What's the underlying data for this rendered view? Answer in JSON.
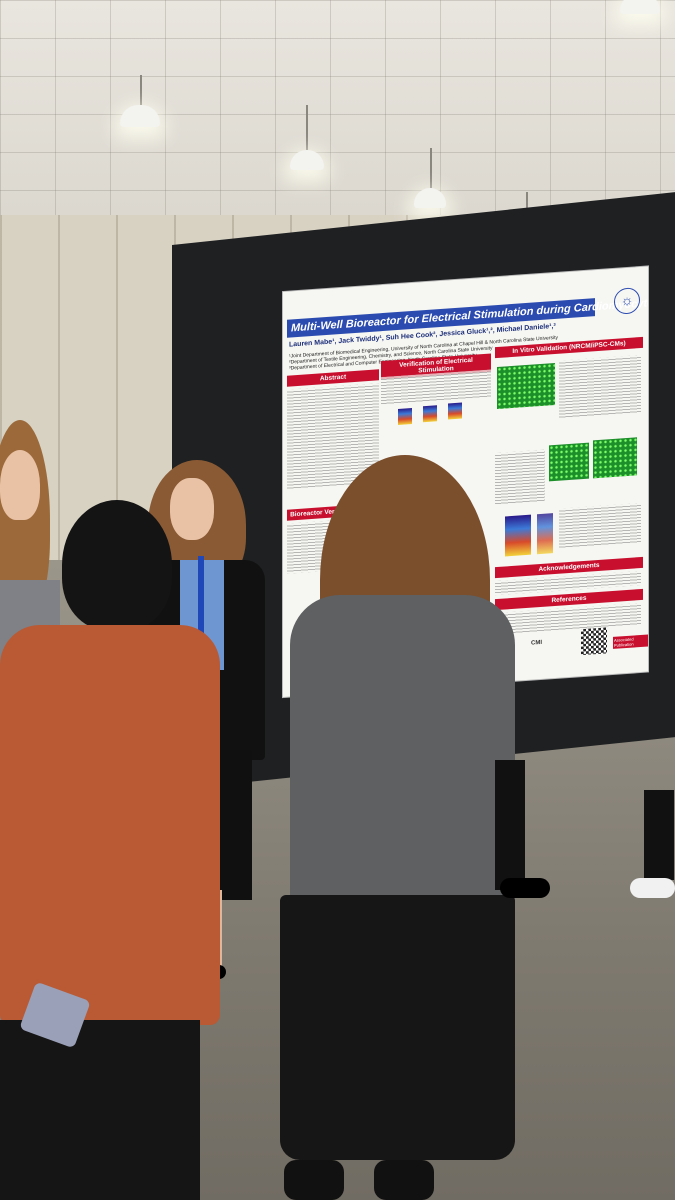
{
  "poster": {
    "title": "Multi-Well Bioreactor for Electrical Stimulation during Cardiomyocyte Differentiation",
    "authors": "Lauren Mabe¹, Jack Twiddy¹, Suh Hee Cook², Jessica Gluck¹,², Michael Daniele¹,³",
    "affiliations": [
      "¹Joint Department of Biomedical Engineering, University of North Carolina at Chapel Hill & North Carolina State University",
      "²Department of Textile Engineering, Chemistry, and Science, North Carolina State University",
      "³Department of Electrical and Computer Engineering, North Carolina State University"
    ],
    "sections": {
      "abstract": "Abstract",
      "verification": "Verification of Electrical Stimulation",
      "in_vitro": "In Vitro Validation (NRCM/iPSC-CMs)",
      "bioreactor": "Bioreactor Versi",
      "acknowledgements": "Acknowledgements",
      "references": "References"
    },
    "logo_text": "CMI",
    "badge_text": "Associated Publication"
  },
  "colors": {
    "title_band": "#2b4bb0",
    "section_header": "#c8102e",
    "board": "#1e2022",
    "sweater_orange": "#b95a34",
    "sweater_gray": "#5f6062"
  }
}
